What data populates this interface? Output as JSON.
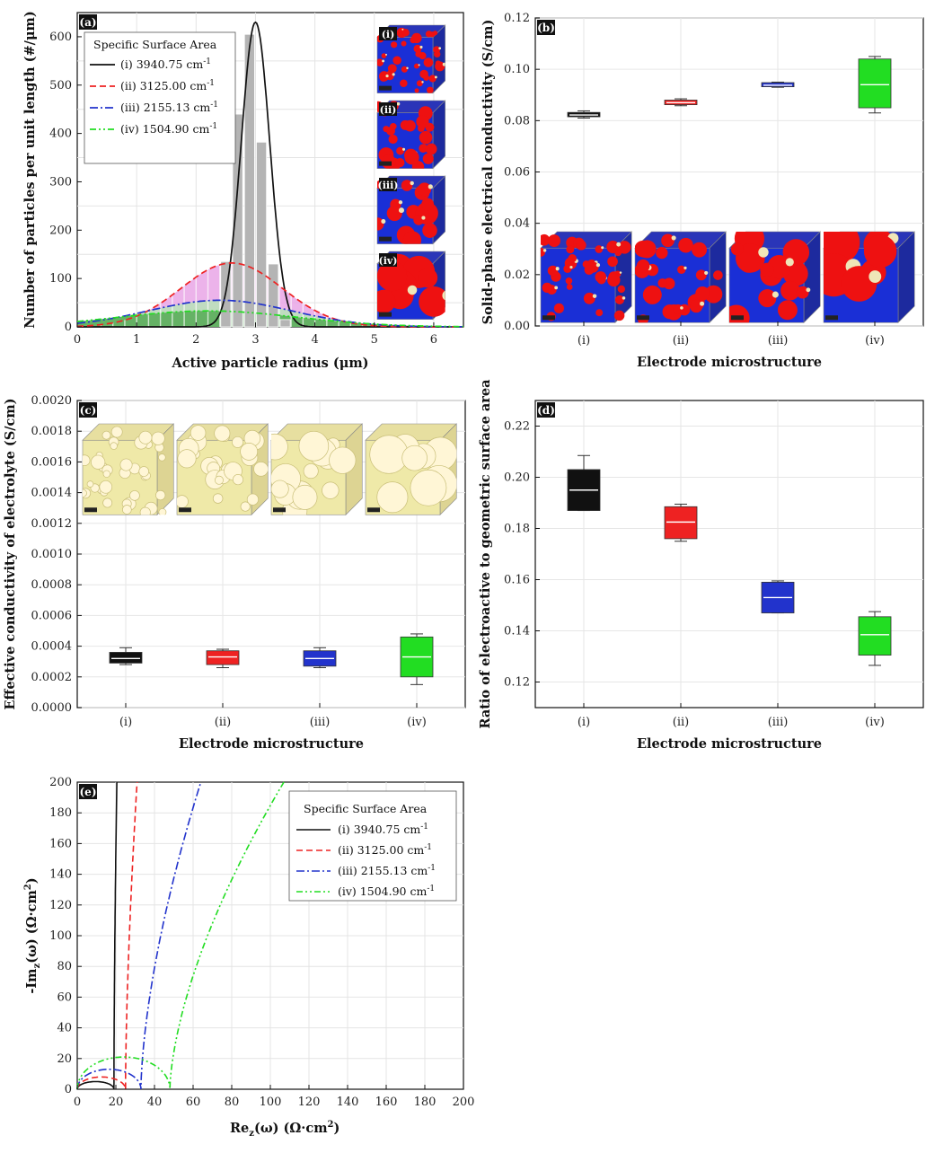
{
  "colors": {
    "i": "#111111",
    "ii": "#ee2222",
    "iii": "#2233cc",
    "iv": "#22dd22",
    "hist_gray": "#b4b4b4",
    "fill_pink": "#e9a6e6",
    "fill_lightgreen": "#b9e3b9",
    "fill_green": "#55aa55",
    "particle_red": "#ee1111",
    "binder_blue": "#1a2fd6",
    "pore_cream": "#efe6b8",
    "electrolyte_yellow": "#efe9a8"
  },
  "chart_data": [
    {
      "panel": "(a)",
      "type": "line+histogram",
      "xlabel": "Active particle radius (μm)",
      "ylabel": "Number of particles per unit length  (#/μm)",
      "xlim": [
        0,
        6.5
      ],
      "ylim": [
        0,
        650
      ],
      "xticks": [
        "0",
        "1",
        "2",
        "3",
        "4",
        "5",
        "6"
      ],
      "yticks": [
        "0",
        "100",
        "200",
        "300",
        "400",
        "500",
        "600"
      ],
      "legend_title": "Specific Surface Area",
      "legend": [
        "(i) 3940.75 cm",
        "(ii) 3125.00 cm",
        "(iii) 2155.13 cm",
        "(iv) 1504.90 cm"
      ],
      "legend_sup": "-1",
      "series": [
        {
          "name": "(i) 3940.75 cm-1",
          "style": "solid",
          "mean": 3.0,
          "sd": 0.24,
          "peak": 630
        },
        {
          "name": "(ii) 3125.00 cm-1",
          "style": "dashed",
          "mean": 2.6,
          "sd": 0.85,
          "peak": 132
        },
        {
          "name": "(iii) 2155.13 cm-1",
          "style": "dashdot",
          "mean": 2.4,
          "sd": 1.2,
          "peak": 55
        },
        {
          "name": "(iv) 1504.90 cm-1",
          "style": "dashdotdot",
          "mean": 2.2,
          "sd": 1.5,
          "peak": 33
        }
      ],
      "histogram": {
        "bins": [
          2.5,
          2.7,
          2.9,
          3.1,
          3.3,
          3.5
        ],
        "values": [
          135,
          440,
          605,
          382,
          130,
          15
        ]
      },
      "insets": [
        "(i)",
        "(ii)",
        "(iii)",
        "(iv)"
      ]
    },
    {
      "panel": "(b)",
      "type": "box",
      "xlabel": "Electrode microstructure",
      "ylabel": "Solid-phase electrical conductivity (S/cm)",
      "categories": [
        "(i)",
        "(ii)",
        "(iii)",
        "(iv)"
      ],
      "ylim": [
        0,
        0.12
      ],
      "yticks": [
        "0.00",
        "0.02",
        "0.04",
        "0.06",
        "0.08",
        "0.10",
        "0.12"
      ],
      "boxes": [
        {
          "min": 0.081,
          "q1": 0.0815,
          "median": 0.0822,
          "q3": 0.0832,
          "max": 0.0838
        },
        {
          "min": 0.0858,
          "q1": 0.0862,
          "median": 0.087,
          "q3": 0.088,
          "max": 0.0885
        },
        {
          "min": 0.093,
          "q1": 0.0932,
          "median": 0.0938,
          "q3": 0.0948,
          "max": 0.095
        },
        {
          "min": 0.083,
          "q1": 0.085,
          "median": 0.094,
          "q3": 0.104,
          "max": 0.105
        }
      ]
    },
    {
      "panel": "(c)",
      "type": "box",
      "xlabel": "Electrode microstructure",
      "ylabel": "Effective conductivity of electrolyte (S/cm)",
      "categories": [
        "(i)",
        "(ii)",
        "(iii)",
        "(iv)"
      ],
      "ylim": [
        0,
        0.002
      ],
      "yticks": [
        "0.0000",
        "0.0002",
        "0.0004",
        "0.0006",
        "0.0008",
        "0.0010",
        "0.0012",
        "0.0014",
        "0.0016",
        "0.0018",
        "0.0020"
      ],
      "boxes": [
        {
          "min": 0.00028,
          "q1": 0.00029,
          "median": 0.00032,
          "q3": 0.00036,
          "max": 0.00039
        },
        {
          "min": 0.00026,
          "q1": 0.00028,
          "median": 0.00033,
          "q3": 0.00037,
          "max": 0.00038
        },
        {
          "min": 0.00026,
          "q1": 0.00027,
          "median": 0.00032,
          "q3": 0.00037,
          "max": 0.00039
        },
        {
          "min": 0.00015,
          "q1": 0.0002,
          "median": 0.00033,
          "q3": 0.00046,
          "max": 0.00048
        }
      ]
    },
    {
      "panel": "(d)",
      "type": "box",
      "xlabel": "Electrode microstructure",
      "ylabel": "Ratio of electroactive to geometric surface area",
      "categories": [
        "(i)",
        "(ii)",
        "(iii)",
        "(iv)"
      ],
      "ylim": [
        0.11,
        0.23
      ],
      "yticks": [
        "0.12",
        "0.14",
        "0.16",
        "0.18",
        "0.20",
        "0.22"
      ],
      "boxes": [
        {
          "min": 0.187,
          "q1": 0.187,
          "median": 0.195,
          "q3": 0.203,
          "max": 0.2085
        },
        {
          "min": 0.175,
          "q1": 0.176,
          "median": 0.1825,
          "q3": 0.1885,
          "max": 0.1895
        },
        {
          "min": 0.147,
          "q1": 0.147,
          "median": 0.153,
          "q3": 0.159,
          "max": 0.1595
        },
        {
          "min": 0.1265,
          "q1": 0.1305,
          "median": 0.1385,
          "q3": 0.1455,
          "max": 0.1475
        }
      ]
    },
    {
      "panel": "(e)",
      "type": "line",
      "xlabel": "Re",
      "xlabel_sub": "z",
      "xlabel_rest": "(ω) (Ω·cm",
      "xlabel_sup": "2",
      "xlabel_end": ")",
      "ylabel": "-Im",
      "ylabel_sub": "z",
      "ylabel_rest": "(ω) (Ω·cm",
      "ylabel_sup": "2",
      "ylabel_end": ")",
      "xlim": [
        0,
        200
      ],
      "ylim": [
        0,
        200
      ],
      "xticks": [
        "0",
        "20",
        "40",
        "60",
        "80",
        "100",
        "120",
        "140",
        "160",
        "180",
        "200"
      ],
      "yticks": [
        "0",
        "20",
        "40",
        "60",
        "80",
        "100",
        "120",
        "140",
        "160",
        "180",
        "200"
      ],
      "legend_title": "Specific Surface Area",
      "legend": [
        "(i) 3940.75 cm",
        "(ii) 3125.00 cm",
        "(iii) 2155.13 cm",
        "(iv) 1504.90 cm"
      ],
      "legend_sup": "-1",
      "series": [
        {
          "name": "(i) 3940.75 cm-1",
          "style": "solid",
          "arc_start": 0,
          "arc_end": 19,
          "arc_height": 5,
          "vertical_x": 20,
          "tail_x200": 20.5
        },
        {
          "name": "(ii) 3125.00 cm-1",
          "style": "dashed",
          "arc_start": 0,
          "arc_end": 25,
          "arc_height": 8,
          "vertical_x": 27,
          "tail_x200": 31
        },
        {
          "name": "(iii) 2155.13 cm-1",
          "style": "dashdot",
          "arc_start": 0,
          "arc_end": 33,
          "arc_height": 13,
          "vertical_x": 34,
          "tail_x200": 64
        },
        {
          "name": "(iv) 1504.90 cm-1",
          "style": "dashdotdot",
          "arc_start": 0,
          "arc_end": 48,
          "arc_height": 21,
          "vertical_x": 48,
          "tail_x200": 107
        }
      ]
    }
  ]
}
